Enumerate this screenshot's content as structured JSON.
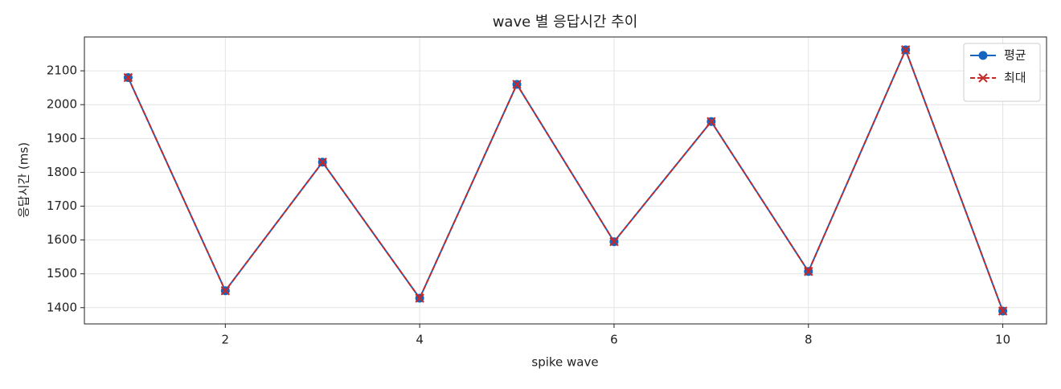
{
  "chart_data": {
    "type": "line",
    "title": "wave 별 응답시간 추이",
    "xlabel": "spike wave",
    "ylabel": "응답시간 (ms)",
    "x": [
      1,
      2,
      3,
      4,
      5,
      6,
      7,
      8,
      9,
      10
    ],
    "series": [
      {
        "name": "평균",
        "color": "#1565c0",
        "marker": "o",
        "linestyle": "solid",
        "values": [
          2080,
          1450,
          1830,
          1428,
          2060,
          1595,
          1950,
          1507,
          2162,
          1390
        ]
      },
      {
        "name": "최대",
        "color": "#c62828",
        "marker": "x",
        "linestyle": "dashed",
        "values": [
          2080,
          1450,
          1830,
          1428,
          2060,
          1595,
          1950,
          1507,
          2162,
          1390
        ]
      }
    ],
    "xlim": [
      0.55,
      10.45
    ],
    "xticks": [
      2,
      4,
      6,
      8,
      10
    ],
    "ylim": [
      1352,
      2200
    ],
    "yticks": [
      1400,
      1500,
      1600,
      1700,
      1800,
      1900,
      2000,
      2100
    ],
    "grid": true,
    "legend": "upper right"
  }
}
